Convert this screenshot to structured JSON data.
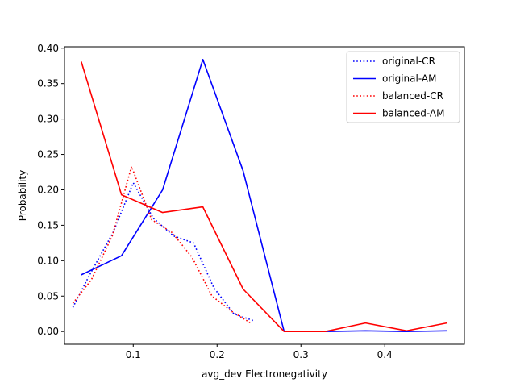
{
  "chart_data": {
    "type": "line",
    "title": "",
    "xlabel": "avg_dev Electronegativity",
    "ylabel": "Probability",
    "xlim": [
      0.018,
      0.495
    ],
    "ylim": [
      -0.018,
      0.402
    ],
    "xticks": [
      0.1,
      0.2,
      0.3,
      0.4
    ],
    "xtick_labels": [
      "0.1",
      "0.2",
      "0.3",
      "0.4"
    ],
    "yticks": [
      0.0,
      0.05,
      0.1,
      0.15,
      0.2,
      0.25,
      0.3,
      0.35,
      0.4
    ],
    "ytick_labels": [
      "0.00",
      "0.05",
      "0.10",
      "0.15",
      "0.20",
      "0.25",
      "0.30",
      "0.35",
      "0.40"
    ],
    "grid": false,
    "legend_position": "top-right",
    "series": [
      {
        "name": "original-CR",
        "color": "#0000ff",
        "style": "dotted",
        "x": [
          0.028,
          0.048,
          0.076,
          0.1,
          0.124,
          0.148,
          0.172,
          0.196,
          0.22,
          0.244
        ],
        "y": [
          0.034,
          0.08,
          0.14,
          0.21,
          0.16,
          0.135,
          0.125,
          0.062,
          0.025,
          0.015
        ]
      },
      {
        "name": "original-AM",
        "color": "#0000ff",
        "style": "solid",
        "x": [
          0.038,
          0.086,
          0.135,
          0.183,
          0.231,
          0.28,
          0.329,
          0.377,
          0.426,
          0.474
        ],
        "y": [
          0.08,
          0.107,
          0.2,
          0.384,
          0.227,
          0.0,
          0.0,
          0.001,
          0.0,
          0.001
        ]
      },
      {
        "name": "balanced-CR",
        "color": "#ff0000",
        "style": "dotted",
        "x": [
          0.028,
          0.05,
          0.075,
          0.098,
          0.122,
          0.146,
          0.17,
          0.194,
          0.218,
          0.24
        ],
        "y": [
          0.04,
          0.073,
          0.135,
          0.233,
          0.158,
          0.14,
          0.105,
          0.05,
          0.028,
          0.012
        ]
      },
      {
        "name": "balanced-AM",
        "color": "#ff0000",
        "style": "solid",
        "x": [
          0.038,
          0.086,
          0.135,
          0.183,
          0.231,
          0.28,
          0.329,
          0.377,
          0.426,
          0.474
        ],
        "y": [
          0.381,
          0.193,
          0.168,
          0.176,
          0.06,
          0.0,
          0.0,
          0.012,
          0.001,
          0.012
        ]
      }
    ]
  }
}
